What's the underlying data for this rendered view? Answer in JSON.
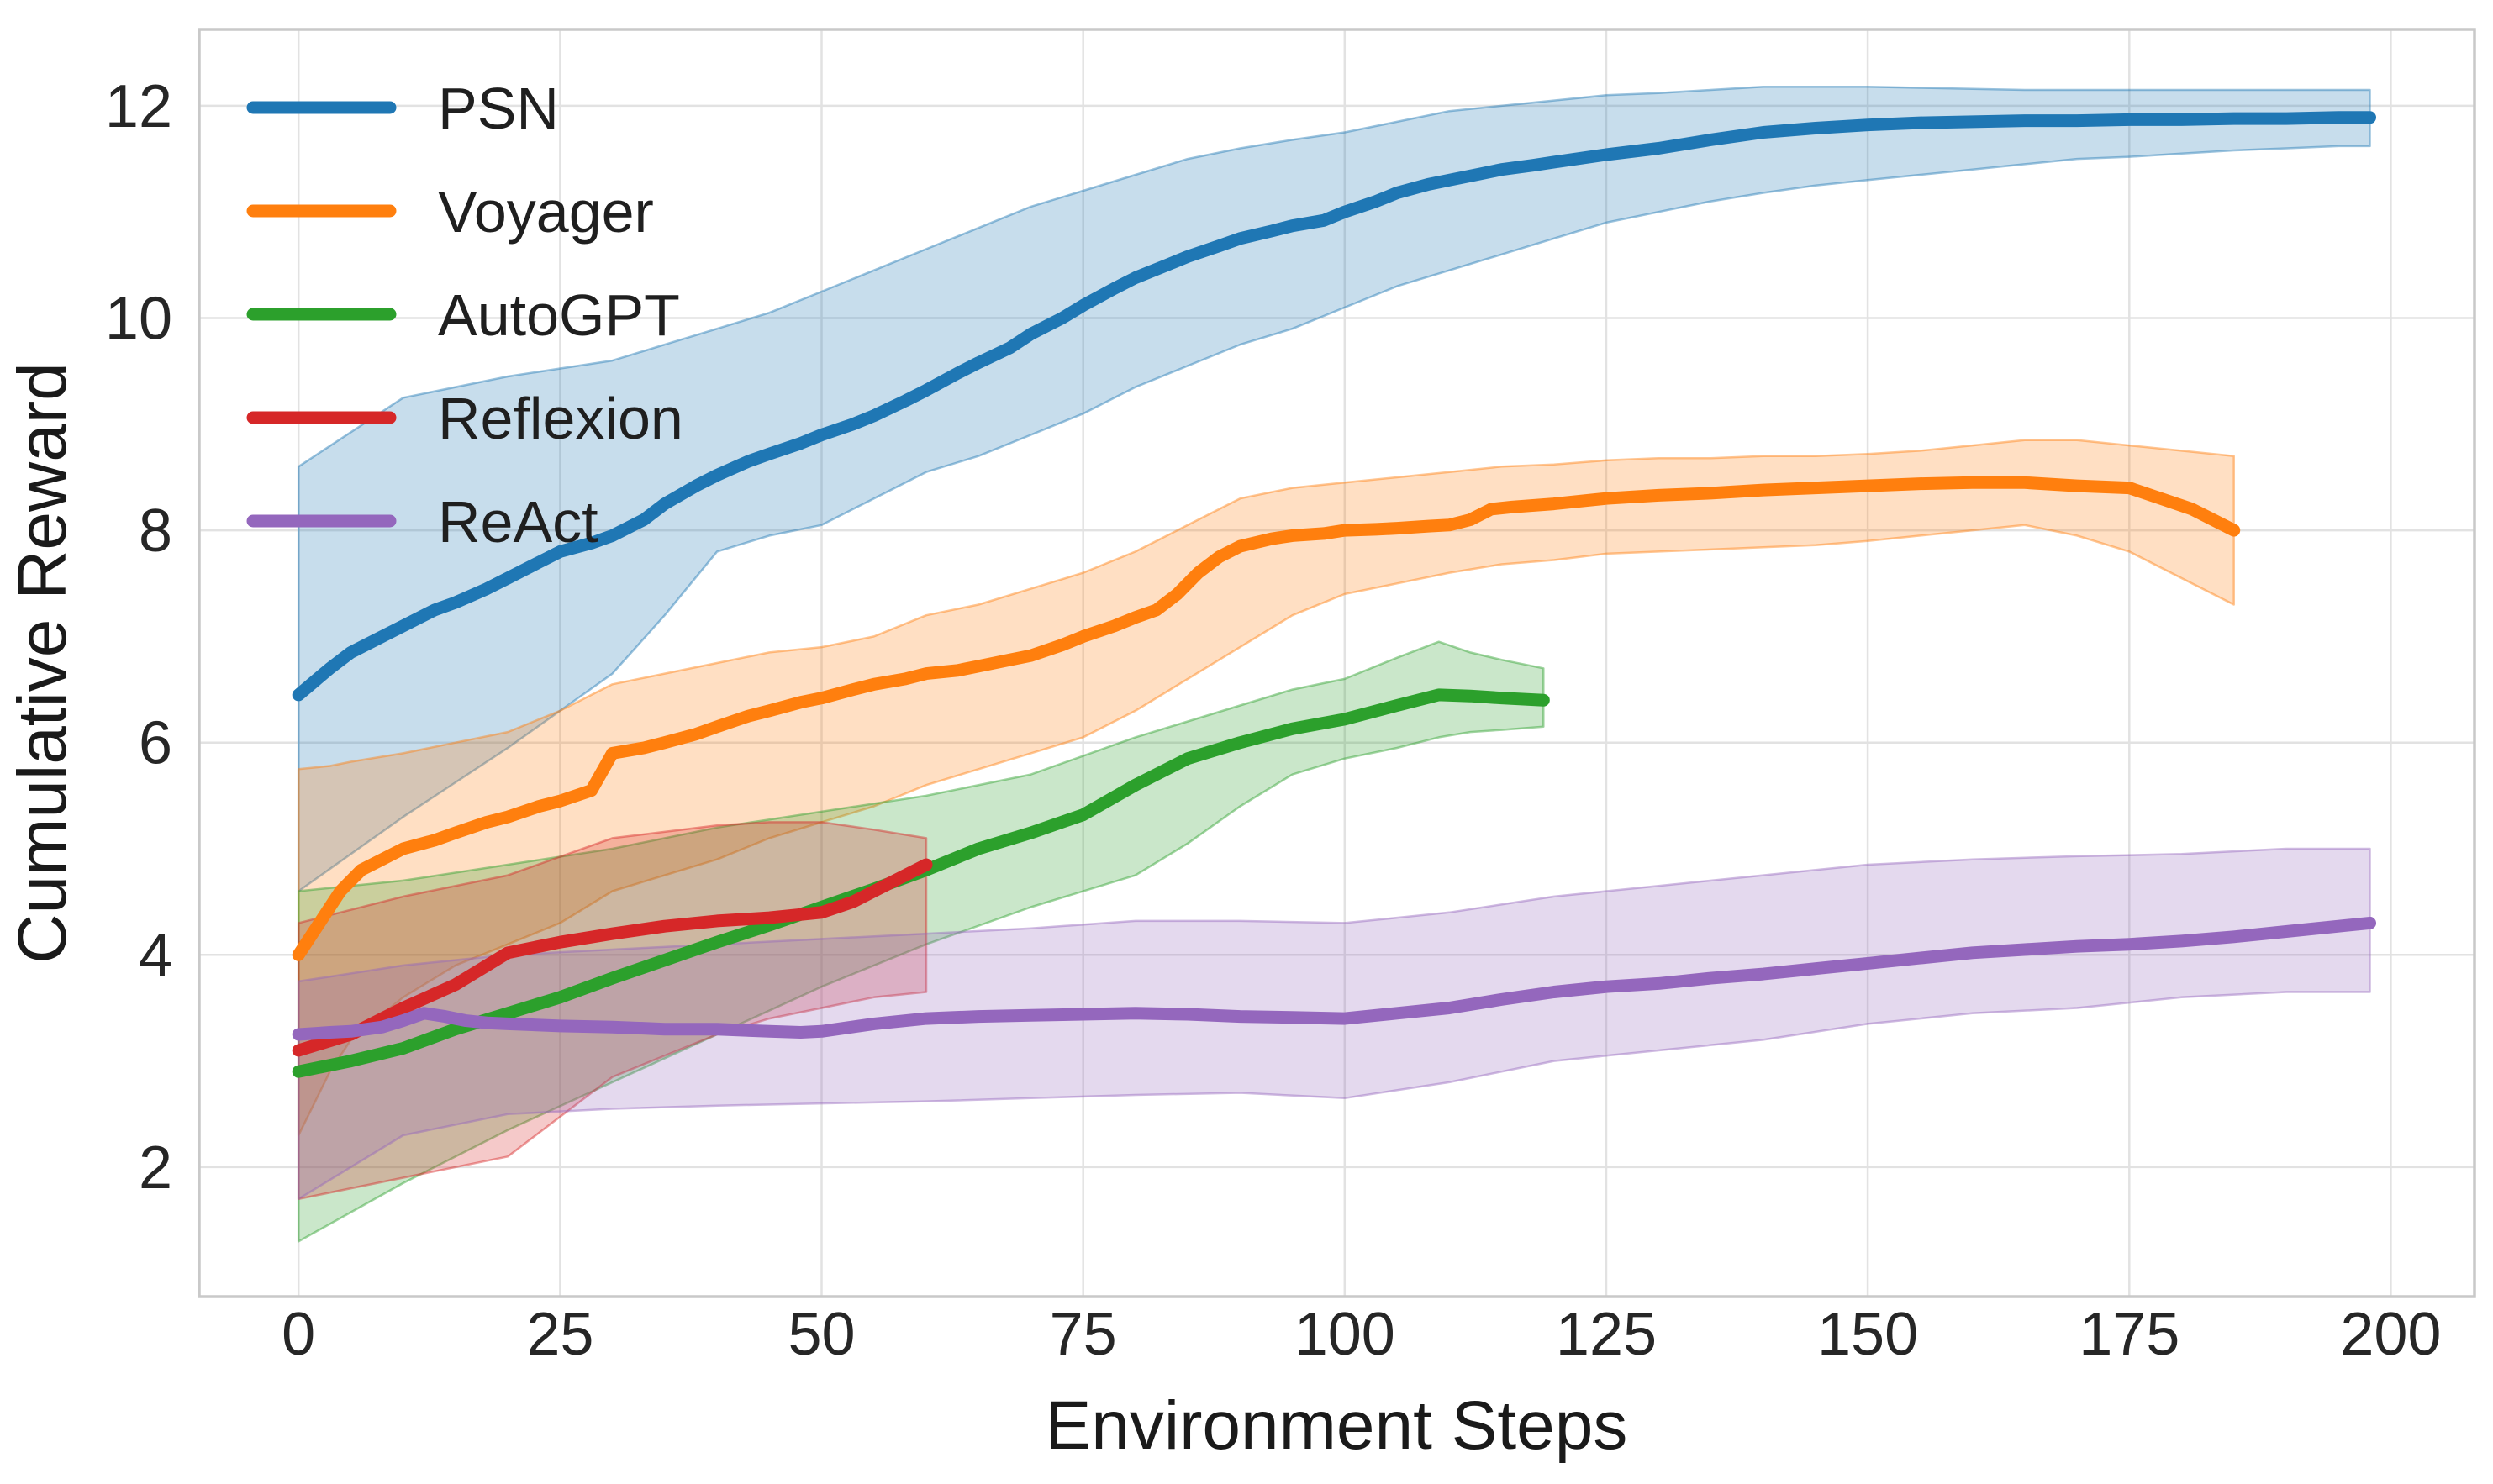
{
  "chart_data": {
    "type": "line",
    "title": "",
    "xlabel": "Environment Steps",
    "ylabel": "Cumulative Reward",
    "xlim": [
      -9.5,
      208
    ],
    "ylim": [
      0.78,
      12.72
    ],
    "xticks": [
      0,
      25,
      50,
      75,
      100,
      125,
      150,
      175,
      200
    ],
    "yticks": [
      2,
      4,
      6,
      8,
      10,
      12
    ],
    "grid": true,
    "legend_position": "upper-left",
    "series": [
      {
        "name": "PSN",
        "color": "#1f77b4",
        "x": [
          0,
          3,
          5,
          8,
          10,
          13,
          15,
          18,
          20,
          23,
          25,
          28,
          30,
          33,
          35,
          38,
          40,
          43,
          45,
          48,
          50,
          53,
          55,
          58,
          60,
          63,
          65,
          68,
          70,
          73,
          75,
          78,
          80,
          83,
          85,
          88,
          90,
          93,
          95,
          98,
          100,
          103,
          105,
          108,
          110,
          113,
          115,
          118,
          120,
          125,
          130,
          135,
          140,
          145,
          150,
          155,
          160,
          165,
          170,
          175,
          180,
          185,
          190,
          195,
          198
        ],
        "y": [
          6.45,
          6.7,
          6.85,
          7.0,
          7.1,
          7.25,
          7.32,
          7.45,
          7.55,
          7.7,
          7.8,
          7.88,
          7.95,
          8.1,
          8.25,
          8.42,
          8.52,
          8.65,
          8.72,
          8.82,
          8.9,
          9.0,
          9.08,
          9.22,
          9.32,
          9.48,
          9.58,
          9.72,
          9.85,
          10.0,
          10.12,
          10.28,
          10.38,
          10.5,
          10.58,
          10.68,
          10.75,
          10.82,
          10.87,
          10.92,
          11.0,
          11.1,
          11.18,
          11.26,
          11.3,
          11.36,
          11.4,
          11.44,
          11.47,
          11.54,
          11.6,
          11.68,
          11.75,
          11.79,
          11.82,
          11.84,
          11.85,
          11.86,
          11.86,
          11.87,
          11.87,
          11.88,
          11.88,
          11.89,
          11.89
        ],
        "band": {
          "x": [
            0,
            10,
            20,
            30,
            35,
            40,
            45,
            50,
            55,
            60,
            65,
            70,
            75,
            80,
            85,
            90,
            95,
            100,
            105,
            110,
            115,
            120,
            125,
            130,
            135,
            140,
            145,
            150,
            155,
            160,
            165,
            170,
            175,
            180,
            185,
            190,
            195,
            198
          ],
          "lower": [
            4.6,
            5.3,
            5.95,
            6.65,
            7.2,
            7.8,
            7.95,
            8.05,
            8.3,
            8.55,
            8.7,
            8.9,
            9.1,
            9.35,
            9.55,
            9.75,
            9.9,
            10.1,
            10.3,
            10.45,
            10.6,
            10.75,
            10.9,
            11.0,
            11.1,
            11.18,
            11.25,
            11.3,
            11.35,
            11.4,
            11.45,
            11.5,
            11.52,
            11.55,
            11.58,
            11.6,
            11.62,
            11.62
          ],
          "upper": [
            8.6,
            9.25,
            9.45,
            9.6,
            9.75,
            9.9,
            10.05,
            10.25,
            10.45,
            10.65,
            10.85,
            11.05,
            11.2,
            11.35,
            11.5,
            11.6,
            11.68,
            11.75,
            11.85,
            11.95,
            12.0,
            12.05,
            12.1,
            12.12,
            12.15,
            12.18,
            12.18,
            12.18,
            12.17,
            12.16,
            12.15,
            12.15,
            12.15,
            12.15,
            12.15,
            12.15,
            12.15,
            12.15
          ]
        }
      },
      {
        "name": "Voyager",
        "color": "#ff7f0e",
        "x": [
          0,
          2,
          4,
          6,
          8,
          10,
          13,
          15,
          18,
          20,
          23,
          25,
          28,
          30,
          33,
          35,
          38,
          40,
          43,
          45,
          48,
          50,
          53,
          55,
          58,
          60,
          63,
          65,
          68,
          70,
          73,
          75,
          78,
          80,
          82,
          84,
          86,
          88,
          90,
          93,
          95,
          98,
          100,
          103,
          105,
          108,
          110,
          112,
          114,
          116,
          120,
          125,
          130,
          135,
          140,
          145,
          150,
          155,
          160,
          165,
          170,
          175,
          178,
          181,
          183,
          185
        ],
        "y": [
          4.0,
          4.3,
          4.6,
          4.8,
          4.9,
          5.0,
          5.08,
          5.15,
          5.25,
          5.3,
          5.4,
          5.45,
          5.55,
          5.9,
          5.95,
          6.0,
          6.08,
          6.15,
          6.25,
          6.3,
          6.38,
          6.42,
          6.5,
          6.55,
          6.6,
          6.65,
          6.68,
          6.72,
          6.78,
          6.82,
          6.92,
          7.0,
          7.1,
          7.18,
          7.25,
          7.4,
          7.6,
          7.75,
          7.85,
          7.92,
          7.95,
          7.97,
          8.0,
          8.01,
          8.02,
          8.04,
          8.05,
          8.1,
          8.2,
          8.22,
          8.25,
          8.3,
          8.33,
          8.35,
          8.38,
          8.4,
          8.42,
          8.44,
          8.45,
          8.45,
          8.42,
          8.4,
          8.3,
          8.2,
          8.1,
          8.0
        ],
        "band": {
          "x": [
            0,
            3,
            5,
            10,
            15,
            20,
            25,
            30,
            35,
            40,
            45,
            50,
            55,
            60,
            65,
            70,
            75,
            80,
            85,
            90,
            95,
            100,
            105,
            110,
            115,
            120,
            125,
            130,
            135,
            140,
            145,
            150,
            155,
            160,
            165,
            170,
            175,
            180,
            185
          ],
          "lower": [
            2.3,
            2.9,
            3.2,
            3.6,
            3.9,
            4.1,
            4.3,
            4.6,
            4.75,
            4.9,
            5.1,
            5.25,
            5.4,
            5.6,
            5.75,
            5.9,
            6.05,
            6.3,
            6.6,
            6.9,
            7.2,
            7.4,
            7.5,
            7.6,
            7.68,
            7.72,
            7.78,
            7.8,
            7.82,
            7.84,
            7.86,
            7.9,
            7.95,
            8.0,
            8.05,
            7.95,
            7.8,
            7.55,
            7.3
          ],
          "upper": [
            5.75,
            5.78,
            5.82,
            5.9,
            6.0,
            6.1,
            6.3,
            6.55,
            6.65,
            6.75,
            6.85,
            6.9,
            7.0,
            7.2,
            7.3,
            7.45,
            7.6,
            7.8,
            8.05,
            8.3,
            8.4,
            8.45,
            8.5,
            8.55,
            8.6,
            8.62,
            8.66,
            8.68,
            8.68,
            8.7,
            8.7,
            8.72,
            8.75,
            8.8,
            8.85,
            8.85,
            8.8,
            8.75,
            8.7
          ]
        }
      },
      {
        "name": "AutoGPT",
        "color": "#2ca02c",
        "x": [
          0,
          5,
          10,
          15,
          20,
          25,
          30,
          35,
          40,
          45,
          50,
          55,
          60,
          65,
          70,
          75,
          80,
          85,
          90,
          95,
          100,
          105,
          109,
          112,
          115,
          119
        ],
        "y": [
          2.9,
          3.0,
          3.12,
          3.3,
          3.45,
          3.6,
          3.78,
          3.95,
          4.12,
          4.28,
          4.45,
          4.62,
          4.8,
          5.0,
          5.15,
          5.32,
          5.6,
          5.85,
          6.0,
          6.13,
          6.22,
          6.35,
          6.45,
          6.44,
          6.42,
          6.4
        ],
        "band": {
          "x": [
            0,
            10,
            20,
            30,
            40,
            50,
            60,
            70,
            80,
            85,
            90,
            95,
            100,
            105,
            109,
            112,
            115,
            119
          ],
          "lower": [
            1.3,
            1.85,
            2.35,
            2.8,
            3.25,
            3.7,
            4.1,
            4.45,
            4.75,
            5.05,
            5.4,
            5.7,
            5.85,
            5.95,
            6.05,
            6.1,
            6.12,
            6.15
          ],
          "upper": [
            4.6,
            4.7,
            4.85,
            5.0,
            5.2,
            5.35,
            5.5,
            5.7,
            6.05,
            6.2,
            6.35,
            6.5,
            6.6,
            6.8,
            6.95,
            6.85,
            6.78,
            6.7
          ]
        }
      },
      {
        "name": "Reflexion",
        "color": "#d62728",
        "x": [
          0,
          5,
          10,
          15,
          20,
          25,
          30,
          35,
          40,
          45,
          50,
          53,
          55,
          58,
          60
        ],
        "y": [
          3.1,
          3.25,
          3.5,
          3.72,
          4.02,
          4.12,
          4.2,
          4.27,
          4.32,
          4.35,
          4.4,
          4.5,
          4.6,
          4.75,
          4.85
        ],
        "band": {
          "x": [
            0,
            10,
            20,
            30,
            40,
            45,
            50,
            55,
            60
          ],
          "lower": [
            1.7,
            1.9,
            2.1,
            2.85,
            3.25,
            3.4,
            3.5,
            3.6,
            3.65
          ],
          "upper": [
            4.3,
            4.55,
            4.75,
            5.1,
            5.22,
            5.25,
            5.25,
            5.18,
            5.1
          ]
        }
      },
      {
        "name": "ReAct",
        "color": "#9467bd",
        "x": [
          0,
          3,
          5,
          8,
          10,
          12,
          14,
          16,
          18,
          20,
          25,
          30,
          35,
          40,
          45,
          48,
          50,
          55,
          60,
          65,
          70,
          75,
          80,
          85,
          90,
          95,
          100,
          105,
          110,
          115,
          120,
          125,
          130,
          135,
          140,
          145,
          150,
          155,
          160,
          165,
          170,
          175,
          180,
          185,
          190,
          195,
          198
        ],
        "y": [
          3.25,
          3.27,
          3.28,
          3.32,
          3.38,
          3.45,
          3.42,
          3.38,
          3.36,
          3.35,
          3.33,
          3.32,
          3.3,
          3.3,
          3.28,
          3.27,
          3.28,
          3.35,
          3.4,
          3.42,
          3.43,
          3.44,
          3.45,
          3.44,
          3.42,
          3.41,
          3.4,
          3.45,
          3.5,
          3.58,
          3.65,
          3.7,
          3.73,
          3.78,
          3.82,
          3.87,
          3.92,
          3.97,
          4.02,
          4.05,
          4.08,
          4.1,
          4.13,
          4.17,
          4.22,
          4.27,
          4.3
        ],
        "band": {
          "x": [
            0,
            10,
            20,
            30,
            40,
            50,
            60,
            70,
            80,
            90,
            100,
            110,
            120,
            130,
            140,
            150,
            160,
            170,
            180,
            190,
            198
          ],
          "lower": [
            1.7,
            2.3,
            2.5,
            2.55,
            2.58,
            2.6,
            2.62,
            2.65,
            2.68,
            2.7,
            2.65,
            2.8,
            3.0,
            3.1,
            3.2,
            3.35,
            3.45,
            3.5,
            3.6,
            3.65,
            3.65
          ],
          "upper": [
            3.75,
            3.9,
            4.0,
            4.05,
            4.1,
            4.15,
            4.2,
            4.25,
            4.32,
            4.32,
            4.3,
            4.4,
            4.55,
            4.65,
            4.75,
            4.85,
            4.9,
            4.93,
            4.95,
            5.0,
            5.0
          ]
        }
      }
    ]
  },
  "colors": {
    "background": "#ffffff",
    "grid": "#e2e2e2",
    "spine": "#c9c9c9",
    "tick_text": "#262626",
    "label_text": "#1a1a1a"
  }
}
